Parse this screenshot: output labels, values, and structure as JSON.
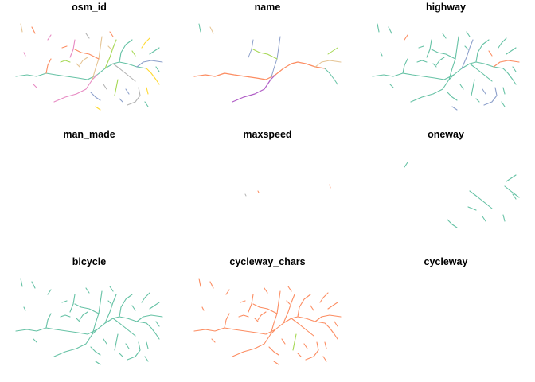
{
  "figure": {
    "panels": [
      {
        "key": "osm_id",
        "title": "osm_id",
        "style": "multicolor"
      },
      {
        "key": "name",
        "title": "name",
        "style": "multicolor-sparse"
      },
      {
        "key": "highway",
        "title": "highway",
        "style": "mostly-green"
      },
      {
        "key": "man_made",
        "title": "man_made",
        "style": "empty"
      },
      {
        "key": "maxspeed",
        "title": "maxspeed",
        "style": "tiny-orange"
      },
      {
        "key": "oneway",
        "title": "oneway",
        "style": "green-east"
      },
      {
        "key": "bicycle",
        "title": "bicycle",
        "style": "green-full"
      },
      {
        "key": "cycleway_chars",
        "title": "cycleway_chars",
        "style": "orange-full"
      },
      {
        "key": "cycleway",
        "title": "cycleway",
        "style": "empty"
      }
    ],
    "colors": {
      "green": "#66c2a5",
      "orange": "#fc8d62",
      "blue": "#8da0cb",
      "pink": "#e78ac3",
      "lime": "#a6d854",
      "yellow": "#ffd92f",
      "tan": "#e5c494",
      "grey": "#b3b3b3"
    }
  }
}
